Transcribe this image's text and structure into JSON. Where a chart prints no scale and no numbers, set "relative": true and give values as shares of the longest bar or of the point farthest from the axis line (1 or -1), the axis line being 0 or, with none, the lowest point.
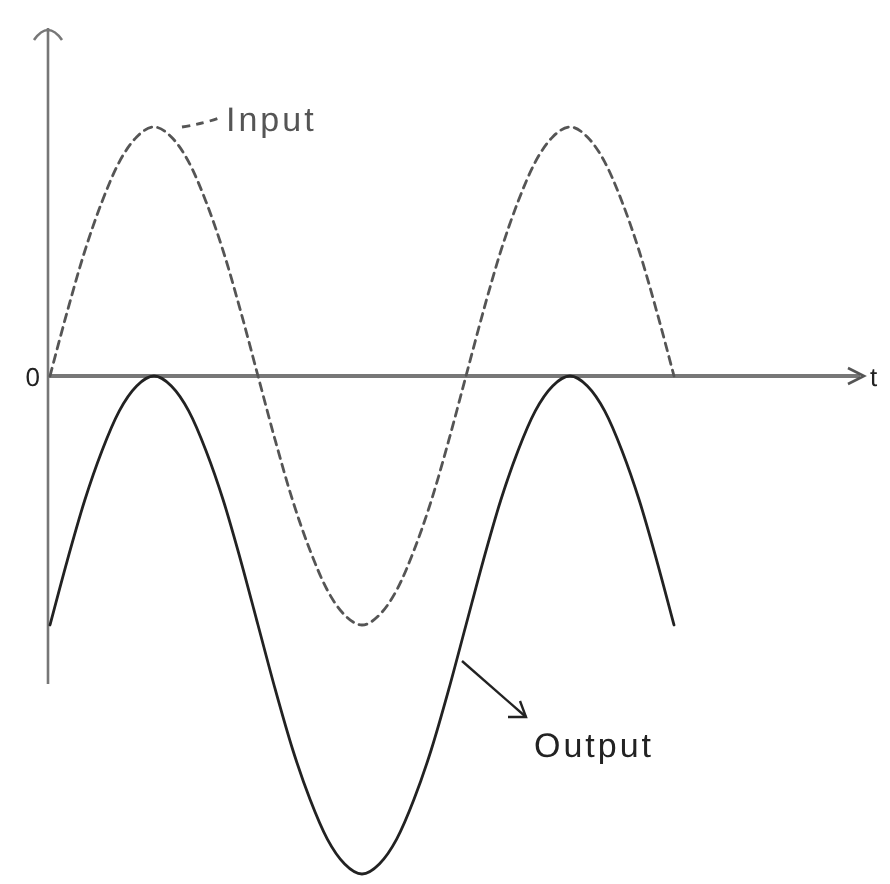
{
  "chart_data": {
    "type": "line",
    "relative": true,
    "annotations": [
      "0",
      "t"
    ],
    "categories": [
      null,
      null,
      null,
      null,
      null,
      null,
      null,
      null,
      null,
      null,
      null,
      null,
      null,
      null,
      null,
      null,
      null,
      null,
      null,
      null,
      null,
      null,
      null,
      null,
      null,
      null,
      null,
      null,
      null,
      null,
      null,
      null,
      null,
      null,
      null,
      null,
      null
    ],
    "series": [
      {
        "name": "Input",
        "color": "#555555",
        "line_style": "dashed",
        "values": [
          0,
          0.13,
          0.25,
          0.35,
          0.43,
          0.48,
          0.5,
          0.48,
          0.43,
          0.35,
          0.25,
          0.13,
          0,
          -0.13,
          -0.25,
          -0.35,
          -0.43,
          -0.48,
          -0.5,
          -0.48,
          -0.43,
          -0.35,
          -0.25,
          -0.13,
          0,
          0.13,
          0.25,
          0.35,
          0.43,
          0.48,
          0.5,
          0.48,
          0.43,
          0.35,
          0.25,
          0.13,
          0
        ]
      },
      {
        "name": "Output",
        "color": "#222222",
        "line_style": "solid",
        "values": [
          -0.5,
          -0.37,
          -0.25,
          -0.15,
          -0.07,
          -0.02,
          0,
          -0.02,
          -0.07,
          -0.15,
          -0.25,
          -0.37,
          -0.5,
          -0.63,
          -0.75,
          -0.85,
          -0.93,
          -0.98,
          -1,
          -0.98,
          -0.93,
          -0.85,
          -0.75,
          -0.63,
          -0.5,
          -0.37,
          -0.25,
          -0.15,
          -0.07,
          -0.02,
          0,
          -0.02,
          -0.07,
          -0.15,
          -0.25,
          -0.37,
          -0.5
        ]
      }
    ]
  }
}
